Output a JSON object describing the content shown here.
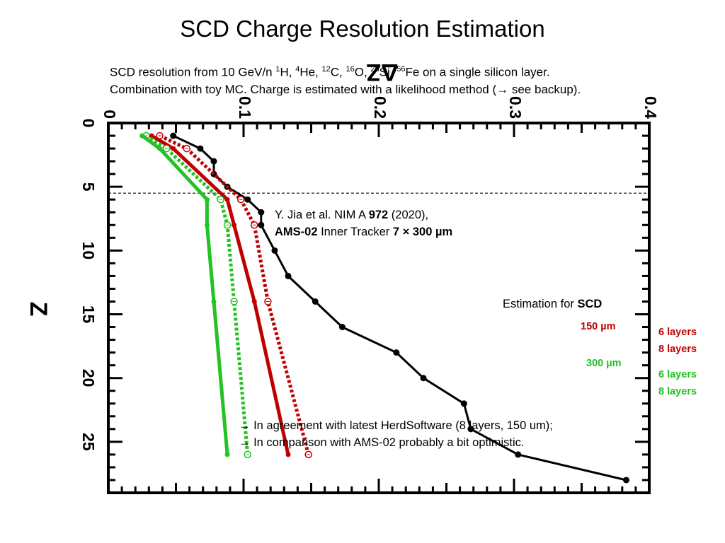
{
  "slide": {
    "title": "SCD Charge Resolution Estimation",
    "subtitle_line1_parts": [
      "SCD resolution from 10 GeV/n ",
      "1",
      "H, ",
      "4",
      "He, ",
      "12",
      "C, ",
      "16",
      "O, ",
      "28",
      "Si, ",
      "56",
      "Fe on a single silicon layer."
    ],
    "subtitle_line2": "Combination with toy MC. Charge is estimated with a likelihood method (→ see backup).",
    "reference_line1_prefix": "Y. Jia et al. NIM A ",
    "reference_line1_bold": "972",
    "reference_line1_suffix": " (2020),",
    "reference_line2_bold1": "AMS-02",
    "reference_line2_mid": " Inner Tracker ",
    "reference_line2_bold2": "7 × 300 µm",
    "estimation_prefix": "Estimation for ",
    "estimation_bold": "SCD",
    "note_line1": "→ In agreement with latest HerdSoftware (8 layers, 150 um);",
    "note_line2": "→ In comparison with AMS-02 probably a bit optimistic.",
    "legend": {
      "group_150": "150 µm",
      "group_300": "300 µm",
      "l6_150": "6 layers",
      "l8_150": "8 layers",
      "l6_300": "6 layers",
      "l8_300": "8 layers"
    },
    "colors": {
      "red": "#c00000",
      "green": "#22c322",
      "black": "#000000"
    }
  },
  "chart_data": {
    "type": "line",
    "title": "",
    "xlabel": "ΔZ",
    "ylabel": "Z",
    "xlim": [
      0,
      0.4
    ],
    "ylim": [
      0,
      29
    ],
    "y_inverted": true,
    "x_axis_position": "top",
    "x_ticks": [
      "0",
      "0.1",
      "0.2",
      "0.3",
      "0.4"
    ],
    "y_ticks": [
      "0",
      "5",
      "10",
      "15",
      "20",
      "25"
    ],
    "reference_line": {
      "style": "dashed",
      "y": 5.5
    },
    "series": [
      {
        "name": "AMS-02 Inner Tracker 7 × 300 µm",
        "color": "#000000",
        "style": "solid",
        "marker": "filled",
        "points": [
          [
            0.048,
            1
          ],
          [
            0.068,
            2
          ],
          [
            0.078,
            3
          ],
          [
            0.078,
            4
          ],
          [
            0.088,
            5
          ],
          [
            0.103,
            6
          ],
          [
            0.113,
            7
          ],
          [
            0.113,
            8
          ],
          [
            0.123,
            10
          ],
          [
            0.133,
            12
          ],
          [
            0.153,
            14
          ],
          [
            0.173,
            16
          ],
          [
            0.213,
            18
          ],
          [
            0.233,
            20
          ],
          [
            0.263,
            22
          ],
          [
            0.268,
            24
          ],
          [
            0.303,
            26
          ],
          [
            0.383,
            28
          ]
        ]
      },
      {
        "name": "150 µm 6 layers",
        "color": "#c00000",
        "style": "dashed",
        "marker": "open",
        "points": [
          [
            0.038,
            1
          ],
          [
            0.058,
            2
          ],
          [
            0.098,
            6
          ],
          [
            0.108,
            8
          ],
          [
            0.118,
            14
          ],
          [
            0.148,
            26
          ]
        ]
      },
      {
        "name": "150 µm 8 layers",
        "color": "#c00000",
        "style": "solid",
        "marker": "filled",
        "points": [
          [
            0.032,
            1
          ],
          [
            0.048,
            2
          ],
          [
            0.088,
            6
          ],
          [
            0.093,
            8
          ],
          [
            0.108,
            14
          ],
          [
            0.133,
            26
          ]
        ]
      },
      {
        "name": "300 µm 6 layers",
        "color": "#22c322",
        "style": "dashed",
        "marker": "open",
        "points": [
          [
            0.028,
            1
          ],
          [
            0.043,
            2
          ],
          [
            0.083,
            6
          ],
          [
            0.088,
            8
          ],
          [
            0.093,
            14
          ],
          [
            0.103,
            26
          ]
        ]
      },
      {
        "name": "300 µm 8 layers",
        "color": "#22c322",
        "style": "solid",
        "marker": "filled",
        "points": [
          [
            0.025,
            1
          ],
          [
            0.038,
            2
          ],
          [
            0.073,
            6
          ],
          [
            0.073,
            8
          ],
          [
            0.078,
            14
          ],
          [
            0.088,
            26
          ]
        ]
      }
    ]
  }
}
